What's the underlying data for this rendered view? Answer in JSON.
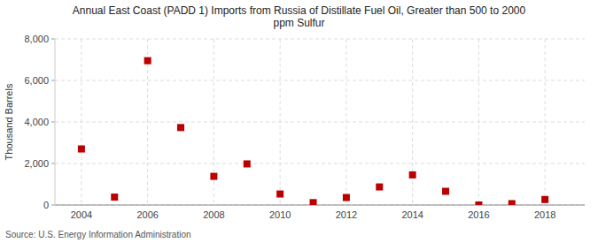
{
  "chart_data": {
    "type": "scatter",
    "title": "Annual East Coast (PADD 1) Imports from Russia of Distillate Fuel Oil, Greater than 500 to 2000\nppm Sulfur",
    "ylabel": "Thousand Barrels",
    "source": "Source: U.S. Energy Information Administration",
    "x": [
      2004,
      2005,
      2006,
      2007,
      2008,
      2009,
      2010,
      2011,
      2012,
      2013,
      2014,
      2015,
      2016,
      2017,
      2018
    ],
    "values": [
      2700,
      380,
      6950,
      3730,
      1380,
      1980,
      530,
      115,
      360,
      870,
      1450,
      660,
      0,
      65,
      265
    ],
    "color": "#bb0000",
    "marker": "square",
    "xlim": [
      2003.2,
      2019.2
    ],
    "ylim": [
      0,
      8000
    ],
    "xticks": [
      2004,
      2006,
      2008,
      2010,
      2012,
      2014,
      2016,
      2018
    ],
    "yticks": [
      0,
      {
        "value": 2000,
        "label": "2,000"
      },
      {
        "value": 4000,
        "label": "4,000"
      },
      {
        "value": 6000,
        "label": "6,000"
      },
      {
        "value": 8000,
        "label": "8,000"
      }
    ],
    "grid": true
  }
}
